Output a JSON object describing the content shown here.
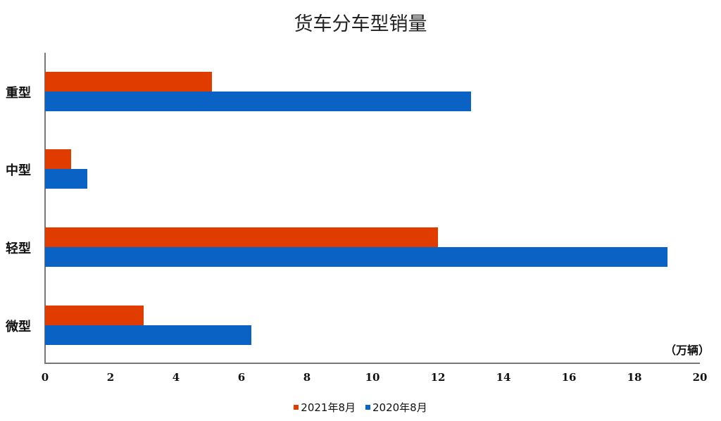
{
  "chart_data": {
    "type": "bar",
    "orientation": "horizontal",
    "title": "货车分车型销量",
    "categories": [
      "重型",
      "中型",
      "轻型",
      "微型"
    ],
    "series": [
      {
        "name": "2021年8月",
        "color": "#e03c00",
        "values": [
          5.1,
          0.8,
          12.0,
          3.0
        ]
      },
      {
        "name": "2020年8月",
        "color": "#0a63c4",
        "values": [
          13.0,
          1.3,
          19.0,
          6.3
        ]
      }
    ],
    "xlabel": "",
    "ylabel": "",
    "unit": "（万辆）",
    "xlim": [
      0,
      20
    ],
    "xticks": [
      "0",
      "2",
      "4",
      "6",
      "8",
      "10",
      "12",
      "14",
      "16",
      "18",
      "20"
    ],
    "grid": false,
    "legend_position": "bottom"
  }
}
